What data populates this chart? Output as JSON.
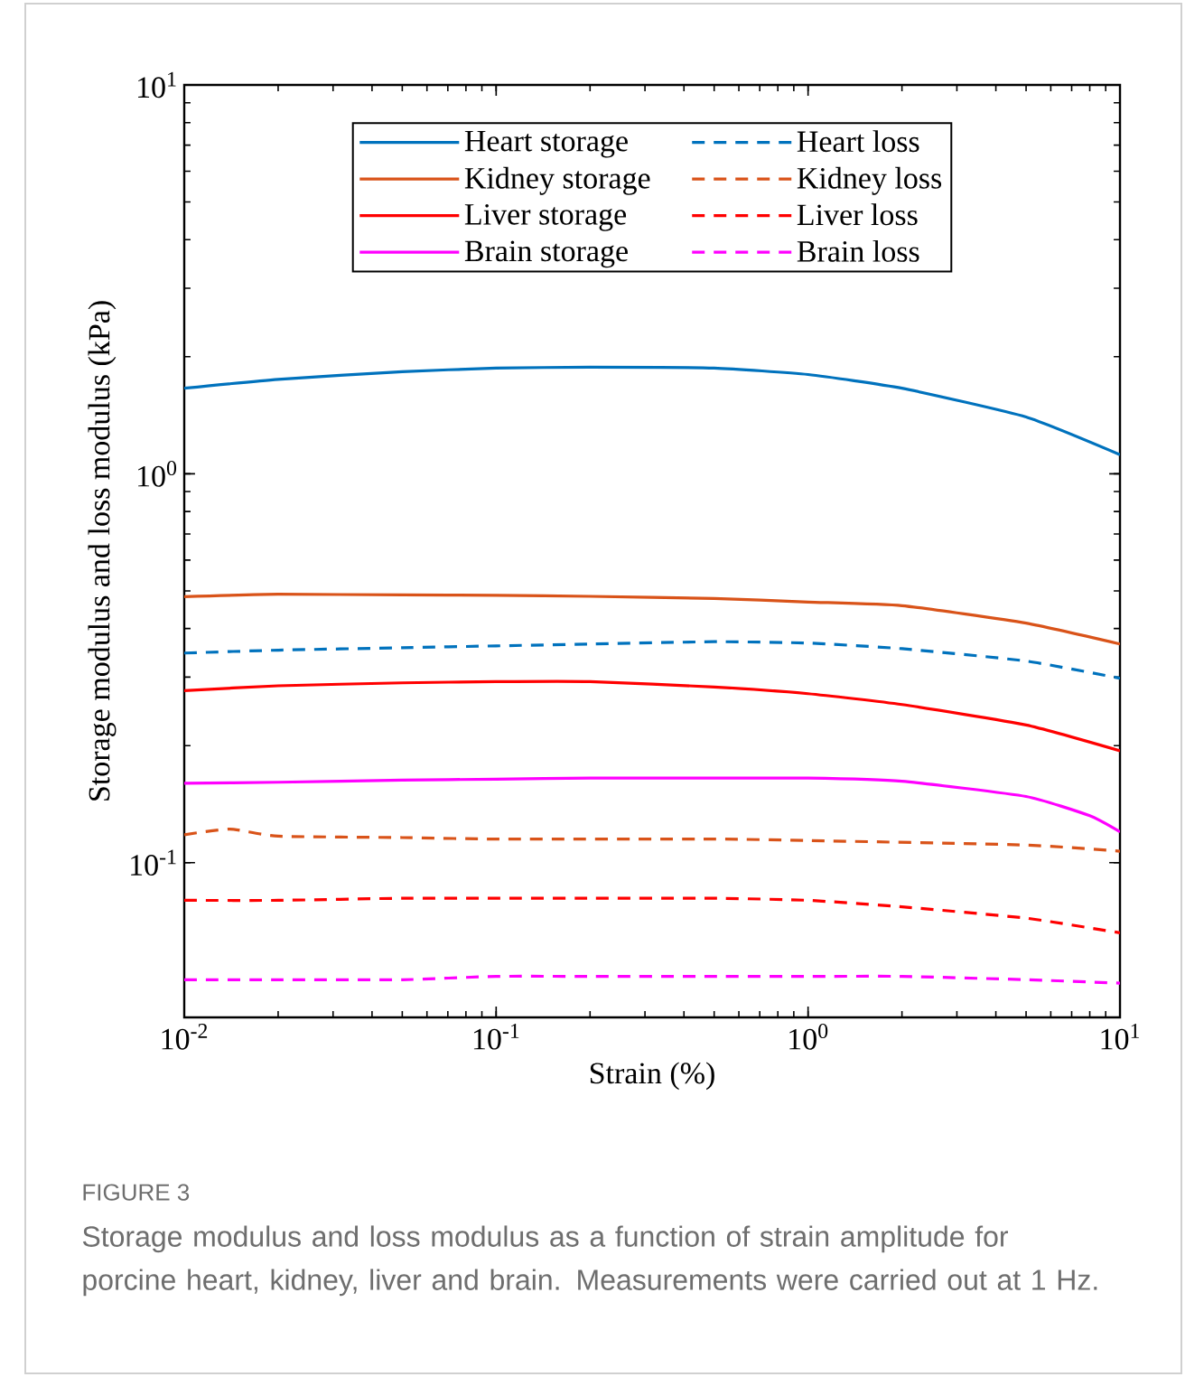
{
  "chart_data": {
    "type": "line",
    "xlabel": "Strain (%)",
    "ylabel": "Storage modulus and loss modulus (kPa)",
    "log": "xy",
    "xlim": [
      0.01,
      10
    ],
    "ylim": [
      0.04,
      10
    ],
    "xticks": [
      {
        "value": 0.01,
        "label": "10$^{-2}$"
      },
      {
        "value": 0.1,
        "label": "10$^{-1}$"
      },
      {
        "value": 1,
        "label": "10$^{0}$"
      },
      {
        "value": 10,
        "label": "10$^{1}$"
      }
    ],
    "yticks": [
      {
        "value": 0.1,
        "label": "10$^{-1}$"
      },
      {
        "value": 1,
        "label": "10$^{0}$"
      },
      {
        "value": 10,
        "label": "10$^{1}$"
      }
    ],
    "x": [
      0.01,
      0.02,
      0.05,
      0.1,
      0.2,
      0.5,
      1,
      2,
      5,
      10
    ],
    "legend": "top",
    "grid": false,
    "series": [
      {
        "name": "Heart storage",
        "color": "#0072bd",
        "line_style": "solid",
        "values": [
          1.66,
          1.75,
          1.83,
          1.87,
          1.88,
          1.87,
          1.8,
          1.66,
          1.4,
          1.12
        ]
      },
      {
        "name": "Heart loss",
        "color": "#0072bd",
        "line_style": "dashed",
        "values": [
          0.346,
          0.352,
          0.357,
          0.361,
          0.365,
          0.37,
          0.367,
          0.355,
          0.33,
          0.298
        ]
      },
      {
        "name": "Kidney storage",
        "color": "#d95319",
        "line_style": "solid",
        "values": [
          0.483,
          0.49,
          0.488,
          0.487,
          0.484,
          0.478,
          0.468,
          0.458,
          0.413,
          0.365
        ]
      },
      {
        "name": "Kidney loss",
        "color": "#d95319",
        "line_style": "dashed",
        "x": [
          0.01,
          0.014,
          0.02,
          0.05,
          0.1,
          0.5,
          1,
          5,
          10
        ],
        "values": [
          0.118,
          0.122,
          0.117,
          0.116,
          0.115,
          0.115,
          0.114,
          0.111,
          0.107
        ]
      },
      {
        "name": "Liver storage",
        "color": "#ff0000",
        "line_style": "solid",
        "values": [
          0.277,
          0.285,
          0.29,
          0.292,
          0.292,
          0.283,
          0.272,
          0.255,
          0.226,
          0.194
        ]
      },
      {
        "name": "Liver loss",
        "color": "#ff0000",
        "line_style": "dashed",
        "values": [
          0.08,
          0.08,
          0.081,
          0.081,
          0.081,
          0.081,
          0.08,
          0.077,
          0.072,
          0.066
        ]
      },
      {
        "name": "Brain storage",
        "color": "#ff00ff",
        "line_style": "solid",
        "x": [
          0.01,
          0.02,
          0.05,
          0.1,
          0.2,
          0.5,
          1,
          2,
          5,
          8,
          10
        ],
        "values": [
          0.16,
          0.161,
          0.163,
          0.164,
          0.165,
          0.165,
          0.165,
          0.162,
          0.148,
          0.132,
          0.12
        ]
      },
      {
        "name": "Brain loss",
        "color": "#ff00ff",
        "line_style": "dashed",
        "values": [
          0.05,
          0.05,
          0.05,
          0.051,
          0.051,
          0.051,
          0.051,
          0.051,
          0.05,
          0.049
        ]
      }
    ],
    "annotations": [
      "FIGURE 3",
      "Storage modulus and loss modulus as a function of strain amplitude for porcine heart, kidney, liver and brain. Measurements were carried out at 1 Hz."
    ]
  }
}
